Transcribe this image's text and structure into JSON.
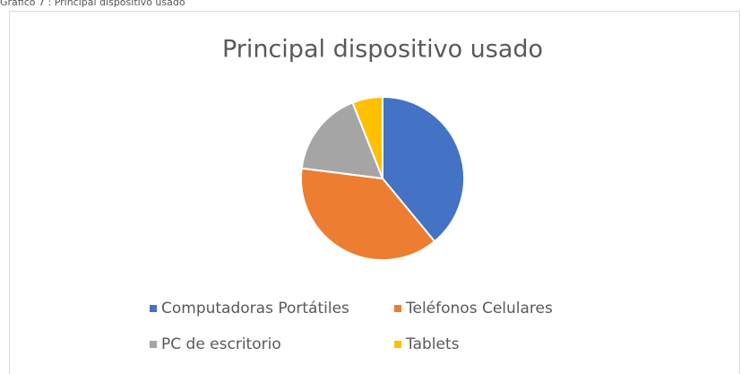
{
  "caption": "Gráfico 7 : Principal dispositivo usado",
  "chart_data": {
    "type": "pie",
    "title": "Principal dispositivo usado",
    "categories": [
      "Computadoras Portátiles",
      "Teléfonos Celulares",
      "PC de escritorio",
      "Tablets"
    ],
    "values": [
      39,
      38,
      17,
      6
    ],
    "colors": [
      "#4472c4",
      "#ed7d31",
      "#a5a5a5",
      "#ffc000"
    ],
    "legend": "bottom"
  }
}
